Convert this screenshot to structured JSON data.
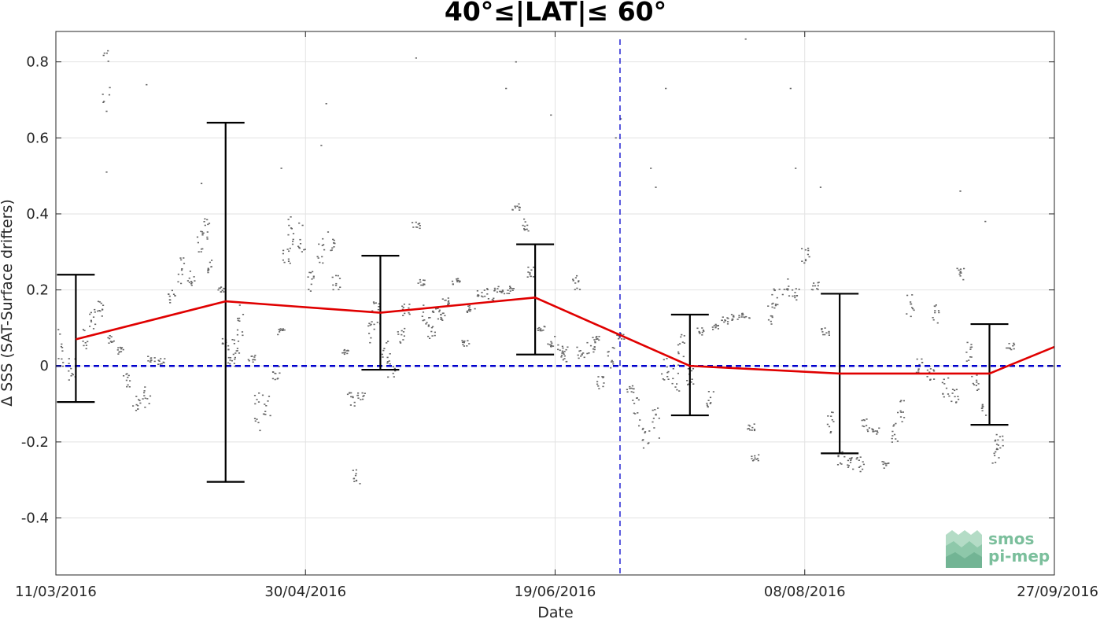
{
  "chart_data": {
    "type": "line",
    "title": "40°≤|LAT|≤ 60°",
    "xlabel": "Date",
    "ylabel": "Δ SSS (SAT-Surface drifters)",
    "xlim": [
      "2016-03-11",
      "2016-09-27"
    ],
    "ylim": [
      -0.55,
      0.88
    ],
    "x_ticks": [
      "11/03/2016",
      "30/04/2016",
      "19/06/2016",
      "08/08/2016",
      "27/09/2016"
    ],
    "y_ticks": [
      -0.4,
      -0.2,
      0,
      0.2,
      0.4,
      0.6,
      0.8
    ],
    "y_tick_labels": [
      "-0.4",
      "-0.2",
      "0",
      "0.2",
      "0.4",
      "0.6",
      "0.8"
    ],
    "grid": true,
    "zero_line": {
      "y": 0,
      "color": "#0000cc",
      "style": "dashed"
    },
    "vertical_marker": {
      "x": "2016-07-02",
      "color": "#0000cc",
      "style": "dashed"
    },
    "series": [
      {
        "type": "line",
        "color": "#e00000",
        "points": [
          {
            "x": "2016-03-15",
            "y": 0.07
          },
          {
            "x": "2016-04-14",
            "y": 0.17
          },
          {
            "x": "2016-05-15",
            "y": 0.14
          },
          {
            "x": "2016-06-15",
            "y": 0.18
          },
          {
            "x": "2016-07-16",
            "y": 0.0
          },
          {
            "x": "2016-08-15",
            "y": -0.02
          },
          {
            "x": "2016-09-14",
            "y": -0.02
          },
          {
            "x": "2016-09-27",
            "y": 0.05
          }
        ]
      },
      {
        "type": "errorbar",
        "color": "#000000",
        "bars": [
          {
            "x": "2016-03-15",
            "low": -0.095,
            "high": 0.24
          },
          {
            "x": "2016-04-14",
            "low": -0.305,
            "high": 0.64
          },
          {
            "x": "2016-05-15",
            "low": -0.01,
            "high": 0.29
          },
          {
            "x": "2016-06-15",
            "low": 0.03,
            "high": 0.32
          },
          {
            "x": "2016-07-16",
            "low": -0.13,
            "high": 0.135
          },
          {
            "x": "2016-08-15",
            "low": -0.23,
            "high": 0.19
          },
          {
            "x": "2016-09-14",
            "low": -0.155,
            "high": 0.11
          }
        ]
      },
      {
        "type": "scatter",
        "color": "#666666",
        "clusters": [
          {
            "x": "2016-03-12",
            "y": 0.05,
            "spread": 0.06
          },
          {
            "x": "2016-03-14",
            "y": -0.01,
            "spread": 0.03
          },
          {
            "x": "2016-03-17",
            "y": 0.07,
            "spread": 0.03
          },
          {
            "x": "2016-03-18",
            "y": 0.12,
            "spread": 0.03
          },
          {
            "x": "2016-03-20",
            "y": 0.15,
            "spread": 0.02
          },
          {
            "x": "2016-03-21",
            "y": 0.77,
            "spread": 0.08
          },
          {
            "x": "2016-03-22",
            "y": 0.08,
            "spread": 0.02
          },
          {
            "x": "2016-03-24",
            "y": 0.04,
            "spread": 0.01
          },
          {
            "x": "2016-03-25",
            "y": -0.05,
            "spread": 0.03
          },
          {
            "x": "2016-03-27",
            "y": -0.1,
            "spread": 0.02
          },
          {
            "x": "2016-03-29",
            "y": -0.08,
            "spread": 0.03
          },
          {
            "x": "2016-03-30",
            "y": 0.02,
            "spread": 0.01
          },
          {
            "x": "2016-04-01",
            "y": 0.01,
            "spread": 0.01
          },
          {
            "x": "2016-04-03",
            "y": 0.18,
            "spread": 0.02
          },
          {
            "x": "2016-04-05",
            "y": 0.25,
            "spread": 0.04
          },
          {
            "x": "2016-04-07",
            "y": 0.23,
            "spread": 0.02
          },
          {
            "x": "2016-04-09",
            "y": 0.34,
            "spread": 0.04
          },
          {
            "x": "2016-04-10",
            "y": 0.36,
            "spread": 0.03
          },
          {
            "x": "2016-04-11",
            "y": 0.26,
            "spread": 0.02
          },
          {
            "x": "2016-04-13",
            "y": 0.2,
            "spread": 0.01
          },
          {
            "x": "2016-04-14",
            "y": 0.06,
            "spread": 0.02
          },
          {
            "x": "2016-04-15",
            "y": 0.01,
            "spread": 0.02
          },
          {
            "x": "2016-04-16",
            "y": 0.05,
            "spread": 0.02
          },
          {
            "x": "2016-04-17",
            "y": 0.12,
            "spread": 0.04
          },
          {
            "x": "2016-04-19",
            "y": 0.02,
            "spread": 0.01
          },
          {
            "x": "2016-04-20",
            "y": -0.12,
            "spread": 0.05
          },
          {
            "x": "2016-04-22",
            "y": -0.1,
            "spread": 0.04
          },
          {
            "x": "2016-04-24",
            "y": -0.02,
            "spread": 0.02
          },
          {
            "x": "2016-04-25",
            "y": 0.09,
            "spread": 0.01
          },
          {
            "x": "2016-04-26",
            "y": 0.29,
            "spread": 0.02
          },
          {
            "x": "2016-04-27",
            "y": 0.36,
            "spread": 0.04
          },
          {
            "x": "2016-04-29",
            "y": 0.34,
            "spread": 0.04
          },
          {
            "x": "2016-05-01",
            "y": 0.22,
            "spread": 0.03
          },
          {
            "x": "2016-05-03",
            "y": 0.3,
            "spread": 0.04
          },
          {
            "x": "2016-05-05",
            "y": 0.33,
            "spread": 0.04
          },
          {
            "x": "2016-05-06",
            "y": 0.22,
            "spread": 0.02
          },
          {
            "x": "2016-05-08",
            "y": 0.04,
            "spread": 0.01
          },
          {
            "x": "2016-05-09",
            "y": -0.09,
            "spread": 0.02
          },
          {
            "x": "2016-05-10",
            "y": -0.29,
            "spread": 0.02
          },
          {
            "x": "2016-05-11",
            "y": -0.08,
            "spread": 0.01
          },
          {
            "x": "2016-05-13",
            "y": 0.09,
            "spread": 0.03
          },
          {
            "x": "2016-05-14",
            "y": 0.14,
            "spread": 0.03
          },
          {
            "x": "2016-05-16",
            "y": 0.04,
            "spread": 0.03
          },
          {
            "x": "2016-05-17",
            "y": -0.01,
            "spread": 0.02
          },
          {
            "x": "2016-05-19",
            "y": 0.08,
            "spread": 0.02
          },
          {
            "x": "2016-05-20",
            "y": 0.15,
            "spread": 0.02
          },
          {
            "x": "2016-05-22",
            "y": 0.37,
            "spread": 0.01
          },
          {
            "x": "2016-05-23",
            "y": 0.22,
            "spread": 0.01
          },
          {
            "x": "2016-05-24",
            "y": 0.14,
            "spread": 0.03
          },
          {
            "x": "2016-05-25",
            "y": 0.09,
            "spread": 0.02
          },
          {
            "x": "2016-05-26",
            "y": 0.15,
            "spread": 0.01
          },
          {
            "x": "2016-05-27",
            "y": 0.13,
            "spread": 0.01
          },
          {
            "x": "2016-05-28",
            "y": 0.17,
            "spread": 0.01
          },
          {
            "x": "2016-05-30",
            "y": 0.22,
            "spread": 0.01
          },
          {
            "x": "2016-06-01",
            "y": 0.06,
            "spread": 0.01
          },
          {
            "x": "2016-06-02",
            "y": 0.15,
            "spread": 0.01
          },
          {
            "x": "2016-06-04",
            "y": 0.19,
            "spread": 0.01
          },
          {
            "x": "2016-06-06",
            "y": 0.19,
            "spread": 0.02
          },
          {
            "x": "2016-06-08",
            "y": 0.2,
            "spread": 0.01
          },
          {
            "x": "2016-06-10",
            "y": 0.2,
            "spread": 0.01
          },
          {
            "x": "2016-06-11",
            "y": 0.42,
            "spread": 0.01
          },
          {
            "x": "2016-06-13",
            "y": 0.37,
            "spread": 0.02
          },
          {
            "x": "2016-06-14",
            "y": 0.24,
            "spread": 0.02
          },
          {
            "x": "2016-06-16",
            "y": 0.1,
            "spread": 0.01
          },
          {
            "x": "2016-06-18",
            "y": 0.06,
            "spread": 0.02
          },
          {
            "x": "2016-06-20",
            "y": 0.04,
            "spread": 0.02
          },
          {
            "x": "2016-06-21",
            "y": 0.03,
            "spread": 0.02
          },
          {
            "x": "2016-06-23",
            "y": 0.22,
            "spread": 0.02
          },
          {
            "x": "2016-06-24",
            "y": 0.04,
            "spread": 0.02
          },
          {
            "x": "2016-06-26",
            "y": 0.05,
            "spread": 0.02
          },
          {
            "x": "2016-06-27",
            "y": 0.07,
            "spread": 0.01
          },
          {
            "x": "2016-06-28",
            "y": -0.04,
            "spread": 0.02
          },
          {
            "x": "2016-06-30",
            "y": 0.02,
            "spread": 0.03
          },
          {
            "x": "2016-07-02",
            "y": 0.08,
            "spread": 0.01
          },
          {
            "x": "2016-07-04",
            "y": -0.06,
            "spread": 0.01
          },
          {
            "x": "2016-07-05",
            "y": -0.12,
            "spread": 0.04
          },
          {
            "x": "2016-07-07",
            "y": -0.19,
            "spread": 0.03
          },
          {
            "x": "2016-07-09",
            "y": -0.15,
            "spread": 0.04
          },
          {
            "x": "2016-07-11",
            "y": -0.01,
            "spread": 0.03
          },
          {
            "x": "2016-07-13",
            "y": -0.03,
            "spread": 0.04
          },
          {
            "x": "2016-07-14",
            "y": 0.04,
            "spread": 0.05
          },
          {
            "x": "2016-07-16",
            "y": -0.02,
            "spread": 0.03
          },
          {
            "x": "2016-07-18",
            "y": 0.09,
            "spread": 0.01
          },
          {
            "x": "2016-07-20",
            "y": -0.08,
            "spread": 0.03
          },
          {
            "x": "2016-07-21",
            "y": 0.1,
            "spread": 0.01
          },
          {
            "x": "2016-07-23",
            "y": 0.12,
            "spread": 0.01
          },
          {
            "x": "2016-07-25",
            "y": 0.13,
            "spread": 0.01
          },
          {
            "x": "2016-07-27",
            "y": 0.13,
            "spread": 0.01
          },
          {
            "x": "2016-07-28",
            "y": -0.16,
            "spread": 0.01
          },
          {
            "x": "2016-07-29",
            "y": -0.24,
            "spread": 0.01
          },
          {
            "x": "2016-08-01",
            "y": 0.14,
            "spread": 0.03
          },
          {
            "x": "2016-08-02",
            "y": 0.18,
            "spread": 0.03
          },
          {
            "x": "2016-08-04",
            "y": 0.2,
            "spread": 0.03
          },
          {
            "x": "2016-08-06",
            "y": 0.19,
            "spread": 0.02
          },
          {
            "x": "2016-08-08",
            "y": 0.29,
            "spread": 0.02
          },
          {
            "x": "2016-08-10",
            "y": 0.21,
            "spread": 0.01
          },
          {
            "x": "2016-08-12",
            "y": 0.09,
            "spread": 0.01
          },
          {
            "x": "2016-08-13",
            "y": -0.15,
            "spread": 0.03
          },
          {
            "x": "2016-08-15",
            "y": -0.24,
            "spread": 0.02
          },
          {
            "x": "2016-08-17",
            "y": -0.26,
            "spread": 0.02
          },
          {
            "x": "2016-08-19",
            "y": -0.26,
            "spread": 0.02
          },
          {
            "x": "2016-08-20",
            "y": -0.16,
            "spread": 0.02
          },
          {
            "x": "2016-08-22",
            "y": -0.17,
            "spread": 0.01
          },
          {
            "x": "2016-08-24",
            "y": -0.26,
            "spread": 0.01
          },
          {
            "x": "2016-08-26",
            "y": -0.18,
            "spread": 0.03
          },
          {
            "x": "2016-08-27",
            "y": -0.12,
            "spread": 0.03
          },
          {
            "x": "2016-08-29",
            "y": 0.16,
            "spread": 0.03
          },
          {
            "x": "2016-08-31",
            "y": 0.0,
            "spread": 0.02
          },
          {
            "x": "2016-09-02",
            "y": -0.02,
            "spread": 0.02
          },
          {
            "x": "2016-09-03",
            "y": 0.14,
            "spread": 0.03
          },
          {
            "x": "2016-09-05",
            "y": -0.06,
            "spread": 0.03
          },
          {
            "x": "2016-09-07",
            "y": -0.08,
            "spread": 0.02
          },
          {
            "x": "2016-09-08",
            "y": 0.24,
            "spread": 0.02
          },
          {
            "x": "2016-09-10",
            "y": 0.04,
            "spread": 0.03
          },
          {
            "x": "2016-09-11",
            "y": -0.05,
            "spread": 0.03
          },
          {
            "x": "2016-09-13",
            "y": -0.13,
            "spread": 0.03
          },
          {
            "x": "2016-09-15",
            "y": -0.22,
            "spread": 0.04
          },
          {
            "x": "2016-09-16",
            "y": -0.2,
            "spread": 0.02
          },
          {
            "x": "2016-09-18",
            "y": 0.05,
            "spread": 0.01
          }
        ],
        "outliers": [
          {
            "x": "2016-03-21",
            "y": 0.51
          },
          {
            "x": "2016-03-21",
            "y": 0.67
          },
          {
            "x": "2016-03-29",
            "y": 0.74
          },
          {
            "x": "2016-04-09",
            "y": 0.48
          },
          {
            "x": "2016-04-25",
            "y": 0.52
          },
          {
            "x": "2016-05-03",
            "y": 0.58
          },
          {
            "x": "2016-05-04",
            "y": 0.69
          },
          {
            "x": "2016-05-22",
            "y": 0.81
          },
          {
            "x": "2016-06-09",
            "y": 0.73
          },
          {
            "x": "2016-06-11",
            "y": 0.8
          },
          {
            "x": "2016-06-18",
            "y": 0.66
          },
          {
            "x": "2016-07-01",
            "y": 0.6
          },
          {
            "x": "2016-07-02",
            "y": 0.65
          },
          {
            "x": "2016-07-11",
            "y": 0.73
          },
          {
            "x": "2016-07-08",
            "y": 0.52
          },
          {
            "x": "2016-07-09",
            "y": 0.47
          },
          {
            "x": "2016-07-27",
            "y": 0.86
          },
          {
            "x": "2016-08-05",
            "y": 0.73
          },
          {
            "x": "2016-08-06",
            "y": 0.52
          },
          {
            "x": "2016-08-11",
            "y": 0.47
          },
          {
            "x": "2016-09-08",
            "y": 0.46
          },
          {
            "x": "2016-09-13",
            "y": 0.38
          }
        ]
      }
    ]
  },
  "logo": {
    "line1": "smos",
    "line2": "pi-mep",
    "color": "#7bbf9c"
  }
}
